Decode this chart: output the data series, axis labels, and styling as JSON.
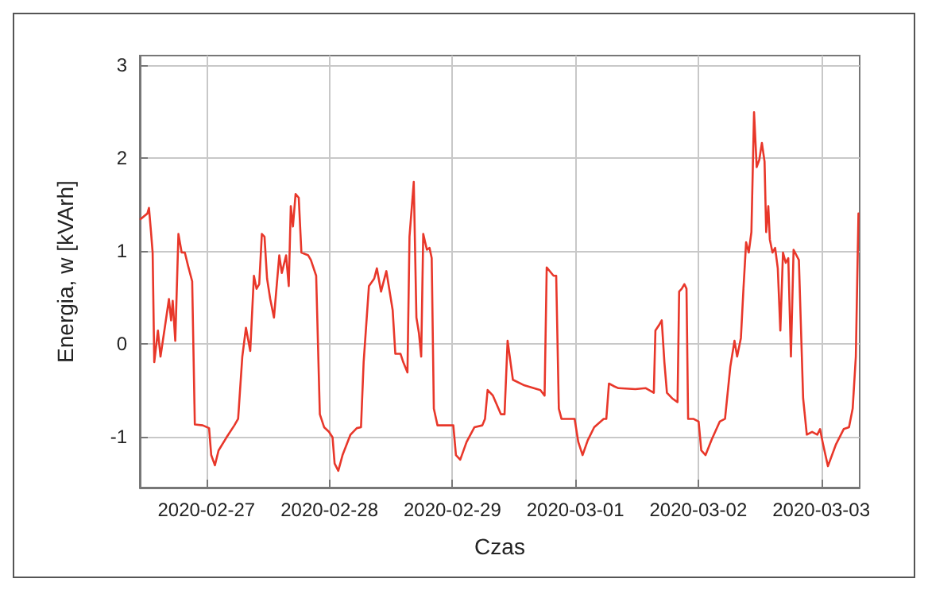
{
  "chart_data": {
    "type": "line",
    "xlabel": "Czas",
    "ylabel": "Energia, w [kVArh]",
    "xlim": [
      "2020-02-26T11:00",
      "2020-03-03T07:30"
    ],
    "xticks": [
      "2020-02-27",
      "2020-02-28",
      "2020-02-29",
      "2020-03-01",
      "2020-03-02",
      "2020-03-03"
    ],
    "ylim": [
      -1.55,
      3.1
    ],
    "yticks": [
      -1,
      0,
      1,
      2,
      3
    ],
    "grid": true,
    "marker": "none",
    "line_style": "solid",
    "series": [
      {
        "color": "#e8372a",
        "x": [
          "2020-02-26T11:08",
          "2020-02-26T12:28",
          "2020-02-26T12:47",
          "2020-02-26T13:11",
          "2020-02-26T13:30",
          "2020-02-26T13:49",
          "2020-02-26T14:32",
          "2020-02-26T15:02",
          "2020-02-26T15:52",
          "2020-02-26T16:41",
          "2020-02-26T17:06",
          "2020-02-26T17:25",
          "2020-02-26T17:55",
          "2020-02-26T18:32",
          "2020-02-26T19:10",
          "2020-02-26T19:47",
          "2020-02-26T20:24",
          "2020-02-26T21:13",
          "2020-02-26T21:44",
          "2020-02-26T23:17",
          "2020-02-27T00:31",
          "2020-02-27T00:56",
          "2020-02-27T01:39",
          "2020-02-27T02:22",
          "2020-02-27T03:55",
          "2020-02-27T05:27",
          "2020-02-27T06:11",
          "2020-02-27T07:00",
          "2020-02-27T07:43",
          "2020-02-27T08:33",
          "2020-02-27T09:16",
          "2020-02-27T09:47",
          "2020-02-27T10:18",
          "2020-02-27T10:49",
          "2020-02-27T11:20",
          "2020-02-27T11:50",
          "2020-02-27T12:27",
          "2020-02-27T13:11",
          "2020-02-27T14:13",
          "2020-02-27T14:43",
          "2020-02-27T15:33",
          "2020-02-27T16:04",
          "2020-02-27T16:28",
          "2020-02-27T16:53",
          "2020-02-27T17:24",
          "2020-02-27T18:01",
          "2020-02-27T18:32",
          "2020-02-27T19:52",
          "2020-02-27T20:23",
          "2020-02-27T21:25",
          "2020-02-27T22:08",
          "2020-02-27T22:58",
          "2020-02-27T23:55",
          "2020-02-28T00:37",
          "2020-02-28T01:01",
          "2020-02-28T01:44",
          "2020-02-28T02:34",
          "2020-02-28T04:07",
          "2020-02-28T05:21",
          "2020-02-28T06:10",
          "2020-02-28T06:41",
          "2020-02-28T07:43",
          "2020-02-28T08:45",
          "2020-02-28T09:16",
          "2020-02-28T10:05",
          "2020-02-28T11:07",
          "2020-02-28T12:21",
          "2020-02-28T12:52",
          "2020-02-28T13:53",
          "2020-02-28T14:25",
          "2020-02-28T15:14",
          "2020-02-28T15:38",
          "2020-02-28T16:28",
          "2020-02-28T16:59",
          "2020-02-28T17:29",
          "2020-02-28T17:55",
          "2020-02-28T18:19",
          "2020-02-28T19:02",
          "2020-02-28T19:33",
          "2020-02-28T19:58",
          "2020-02-28T20:23",
          "2020-02-28T21:06",
          "2020-02-28T22:08",
          "2020-02-29T00:11",
          "2020-02-29T00:42",
          "2020-02-29T01:32",
          "2020-02-29T02:46",
          "2020-02-29T04:19",
          "2020-02-29T05:51",
          "2020-02-29T06:22",
          "2020-02-29T06:53",
          "2020-02-29T07:55",
          "2020-02-29T09:28",
          "2020-02-29T10:11",
          "2020-02-29T10:47",
          "2020-02-29T11:49",
          "2020-02-29T14:05",
          "2020-02-29T17:11",
          "2020-02-29T18:00",
          "2020-02-29T18:25",
          "2020-02-29T19:45",
          "2020-02-29T20:16",
          "2020-02-29T20:47",
          "2020-02-29T21:18",
          "2020-02-29T23:52",
          "2020-03-01T00:35",
          "2020-03-01T01:25",
          "2020-03-01T02:26",
          "2020-03-01T03:41",
          "2020-03-01T05:32",
          "2020-03-01T06:03",
          "2020-03-01T06:34",
          "2020-03-01T07:35",
          "2020-03-01T08:25",
          "2020-03-01T08:37",
          "2020-03-01T11:43",
          "2020-03-01T13:46",
          "2020-03-01T15:19",
          "2020-03-01T15:38",
          "2020-03-01T16:21",
          "2020-03-01T16:52",
          "2020-03-01T17:23",
          "2020-03-01T17:53",
          "2020-03-01T18:55",
          "2020-03-01T19:57",
          "2020-03-01T20:16",
          "2020-03-01T20:46",
          "2020-03-01T21:17",
          "2020-03-01T21:42",
          "2020-03-01T22:01",
          "2020-03-01T23:02",
          "2020-03-02T00:04",
          "2020-03-02T00:35",
          "2020-03-02T01:25",
          "2020-03-02T02:38",
          "2020-03-02T04:11",
          "2020-03-02T05:13",
          "2020-03-02T06:15",
          "2020-03-02T07:04",
          "2020-03-02T07:35",
          "2020-03-02T08:19",
          "2020-03-02T08:49",
          "2020-03-02T09:20",
          "2020-03-02T09:51",
          "2020-03-02T10:22",
          "2020-03-02T10:53",
          "2020-03-02T11:24",
          "2020-03-02T11:55",
          "2020-03-02T12:25",
          "2020-03-02T12:56",
          "2020-03-02T13:15",
          "2020-03-02T13:40",
          "2020-03-02T13:58",
          "2020-03-02T14:29",
          "2020-03-02T15:00",
          "2020-03-02T15:31",
          "2020-03-02T16:01",
          "2020-03-02T16:32",
          "2020-03-02T17:04",
          "2020-03-02T17:34",
          "2020-03-02T18:05",
          "2020-03-02T18:36",
          "2020-03-02T19:38",
          "2020-03-02T20:28",
          "2020-03-02T21:11",
          "2020-03-02T22:13",
          "2020-03-02T23:14",
          "2020-03-02T23:46",
          "2020-03-03T00:16",
          "2020-03-03T01:18",
          "2020-03-03T02:50",
          "2020-03-03T04:23",
          "2020-03-03T05:25",
          "2020-03-03T06:08",
          "2020-03-03T06:45",
          "2020-03-03T07:16"
        ],
        "values": [
          1.34,
          1.4,
          1.46,
          1.2,
          0.98,
          -0.2,
          0.14,
          -0.14,
          0.17,
          0.48,
          0.25,
          0.46,
          0.03,
          1.18,
          0.98,
          0.98,
          0.84,
          0.67,
          -0.87,
          -0.88,
          -0.91,
          -1.2,
          -1.31,
          -1.15,
          -1.01,
          -0.88,
          -0.81,
          -0.14,
          0.17,
          -0.08,
          0.73,
          0.59,
          0.64,
          1.18,
          1.15,
          0.7,
          0.48,
          0.28,
          0.95,
          0.76,
          0.95,
          0.62,
          1.48,
          1.26,
          1.61,
          1.57,
          0.98,
          0.95,
          0.9,
          0.73,
          -0.76,
          -0.9,
          -0.95,
          -1.01,
          -1.29,
          -1.37,
          -1.2,
          -0.98,
          -0.91,
          -0.9,
          -0.2,
          0.62,
          0.7,
          0.81,
          0.56,
          0.78,
          0.36,
          -0.11,
          -0.11,
          -0.2,
          -0.31,
          1.15,
          1.74,
          0.28,
          0.11,
          -0.14,
          1.18,
          1.01,
          1.03,
          0.92,
          -0.7,
          -0.88,
          -0.88,
          -0.88,
          -1.2,
          -1.25,
          -1.06,
          -0.9,
          -0.88,
          -0.81,
          -0.5,
          -0.56,
          -0.76,
          -0.76,
          0.03,
          -0.39,
          -0.45,
          -0.5,
          -0.56,
          0.82,
          0.73,
          0.73,
          -0.7,
          -0.81,
          -0.81,
          -1.06,
          -1.2,
          -1.04,
          -0.9,
          -0.81,
          -0.81,
          -0.43,
          -0.46,
          -0.48,
          -0.48,
          -0.49,
          -0.48,
          -0.53,
          0.14,
          0.2,
          0.25,
          -0.2,
          -0.53,
          -0.59,
          -0.63,
          0.56,
          0.59,
          0.64,
          0.59,
          -0.81,
          -0.81,
          -0.84,
          -1.15,
          -1.2,
          -1.03,
          -0.84,
          -0.81,
          -0.25,
          0.03,
          -0.14,
          0.06,
          0.59,
          1.09,
          0.98,
          1.2,
          2.49,
          1.9,
          1.98,
          2.16,
          1.96,
          1.2,
          1.48,
          1.12,
          0.98,
          1.03,
          0.81,
          0.14,
          0.98,
          0.87,
          0.92,
          -0.14,
          1.01,
          0.9,
          -0.59,
          -0.98,
          -0.95,
          -0.98,
          -0.92,
          -1.06,
          -1.32,
          -1.09,
          -0.92,
          -0.9,
          -0.7,
          -0.14,
          1.4
        ]
      }
    ]
  }
}
